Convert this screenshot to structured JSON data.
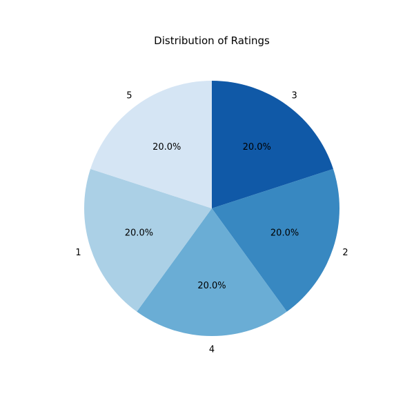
{
  "chart_data": {
    "type": "pie",
    "title": "Distribution of Ratings",
    "slices": [
      {
        "label": "3",
        "value": 20.0,
        "pct_label": "20.0%",
        "color": "#1059a7"
      },
      {
        "label": "2",
        "value": 20.0,
        "pct_label": "20.0%",
        "color": "#3888c1"
      },
      {
        "label": "4",
        "value": 20.0,
        "pct_label": "20.0%",
        "color": "#6aadd5"
      },
      {
        "label": "1",
        "value": 20.0,
        "pct_label": "20.0%",
        "color": "#abd0e6"
      },
      {
        "label": "5",
        "value": 20.0,
        "pct_label": "20.0%",
        "color": "#d5e5f4"
      }
    ],
    "start_angle_deg": 90,
    "direction": "clockwise",
    "legend": "none"
  }
}
